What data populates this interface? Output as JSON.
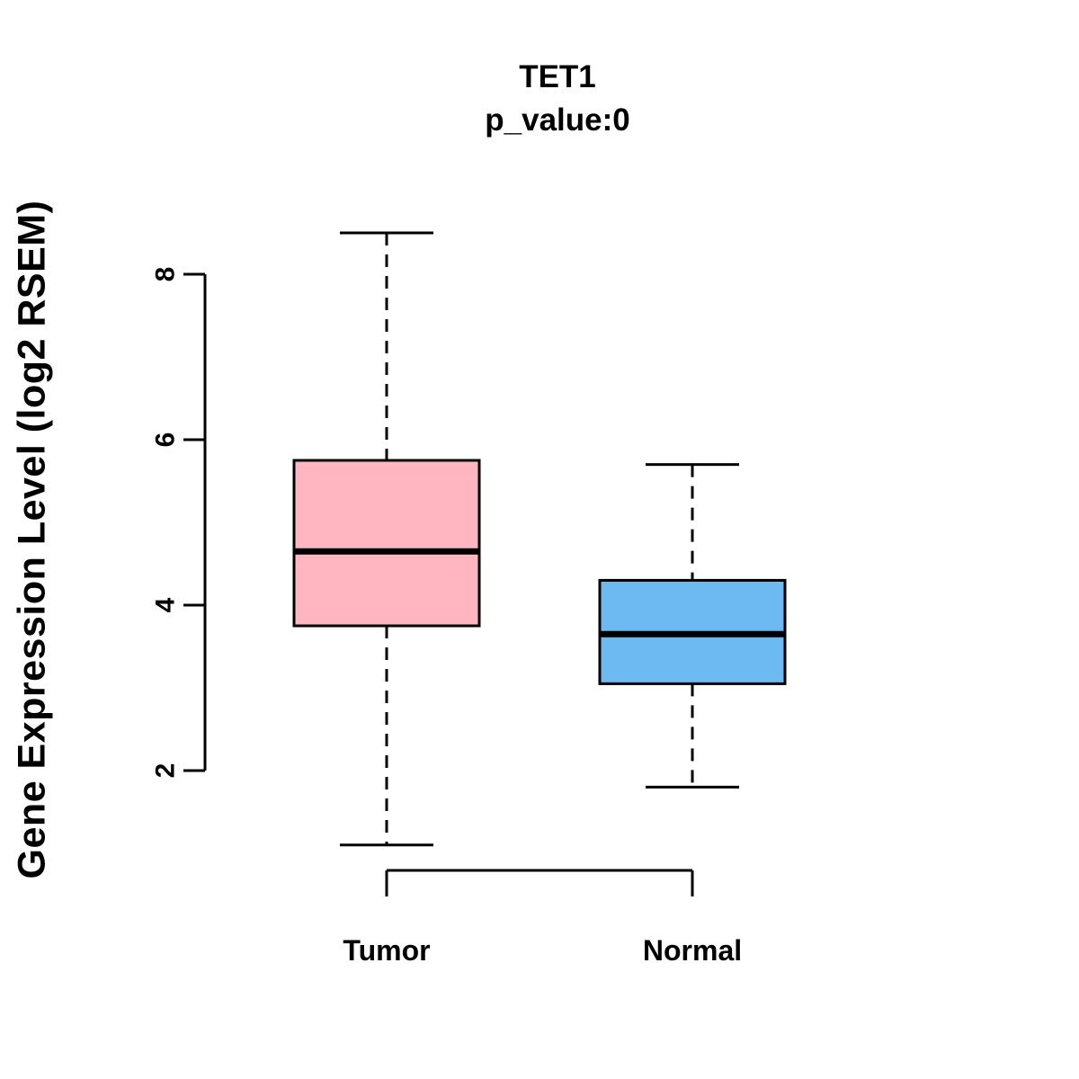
{
  "chart_data": {
    "type": "boxplot",
    "title": "TET1",
    "subtitle": "p_value:0",
    "ylabel": "Gene Expression Level (log2 RSEM)",
    "xlabel": "",
    "categories": [
      "Tumor",
      "Normal"
    ],
    "yticks": [
      2,
      4,
      6,
      8
    ],
    "ylim": [
      1.0,
      8.6
    ],
    "grid": false,
    "legend": "none",
    "series": [
      {
        "name": "Tumor",
        "color": "#FFB6C1",
        "min": 1.1,
        "q1": 3.75,
        "median": 4.65,
        "q3": 5.75,
        "max": 8.5
      },
      {
        "name": "Normal",
        "color": "#6DB9F2",
        "min": 1.8,
        "q1": 3.05,
        "median": 3.65,
        "q3": 4.3,
        "max": 5.7
      }
    ]
  }
}
